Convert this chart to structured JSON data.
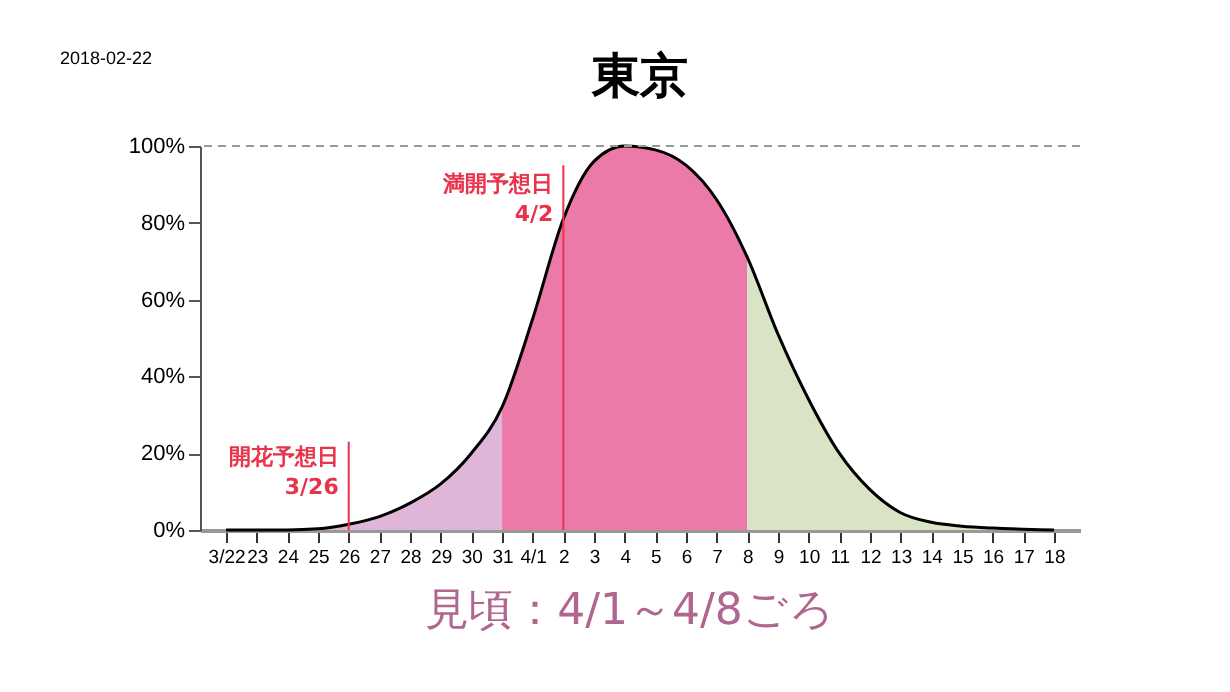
{
  "chart_data": {
    "type": "area",
    "title": "東京",
    "categories": [
      "3/22",
      "23",
      "24",
      "25",
      "26",
      "27",
      "28",
      "29",
      "30",
      "31",
      "4/1",
      "2",
      "3",
      "4",
      "5",
      "6",
      "7",
      "8",
      "9",
      "10",
      "11",
      "12",
      "13",
      "14",
      "15",
      "16",
      "17",
      "18"
    ],
    "series": [
      {
        "color": "#dfb5d8",
        "values": [
          0,
          0,
          0,
          0.3,
          1.5,
          3.5,
          7,
          12,
          20,
          32,
          null,
          null,
          null,
          null,
          null,
          null,
          null,
          null,
          null,
          null,
          null,
          null,
          null,
          null,
          null,
          null,
          null,
          null
        ]
      },
      {
        "color": "#ec7aa9",
        "values": [
          null,
          null,
          null,
          null,
          null,
          null,
          null,
          null,
          null,
          32,
          55,
          81,
          96,
          100,
          99,
          95,
          86,
          71,
          null,
          null,
          null,
          null,
          null,
          null,
          null,
          null,
          null,
          null
        ]
      },
      {
        "color": "#d9e4c7",
        "values": [
          null,
          null,
          null,
          null,
          null,
          null,
          null,
          null,
          null,
          null,
          null,
          null,
          null,
          null,
          null,
          null,
          null,
          71,
          51,
          34,
          20,
          10.5,
          4.5,
          2,
          1,
          0.5,
          0.2,
          0
        ]
      },
      {
        "type": "line",
        "color": "#000000",
        "values": [
          0,
          0,
          0,
          0.3,
          1.5,
          3.5,
          7,
          12,
          20,
          32,
          55,
          81,
          96,
          100,
          99,
          95,
          86,
          71,
          51,
          34,
          20,
          10.5,
          4.5,
          2,
          1,
          0.5,
          0.2,
          0
        ]
      }
    ],
    "ylim": [
      0,
      100
    ],
    "yticks": [
      {
        "value": 0,
        "label": "0%"
      },
      {
        "value": 20,
        "label": "20%"
      },
      {
        "value": 40,
        "label": "40%"
      },
      {
        "value": 60,
        "label": "60%"
      },
      {
        "value": 80,
        "label": "80%"
      },
      {
        "value": 100,
        "label": "100%"
      }
    ],
    "ref_lines": [
      {
        "axis": "x",
        "value": "26",
        "label": "開花予想日\n3/26",
        "color": "#e8334a"
      },
      {
        "axis": "x",
        "value": "2",
        "label": "満開予想日\n4/2",
        "color": "#e8334a"
      },
      {
        "axis": "y",
        "value": 100,
        "color": "#999999",
        "line_style": "dashed"
      }
    ],
    "annotations": [
      "2018-02-22",
      "見頃：4/1～4/8ごろ"
    ]
  }
}
